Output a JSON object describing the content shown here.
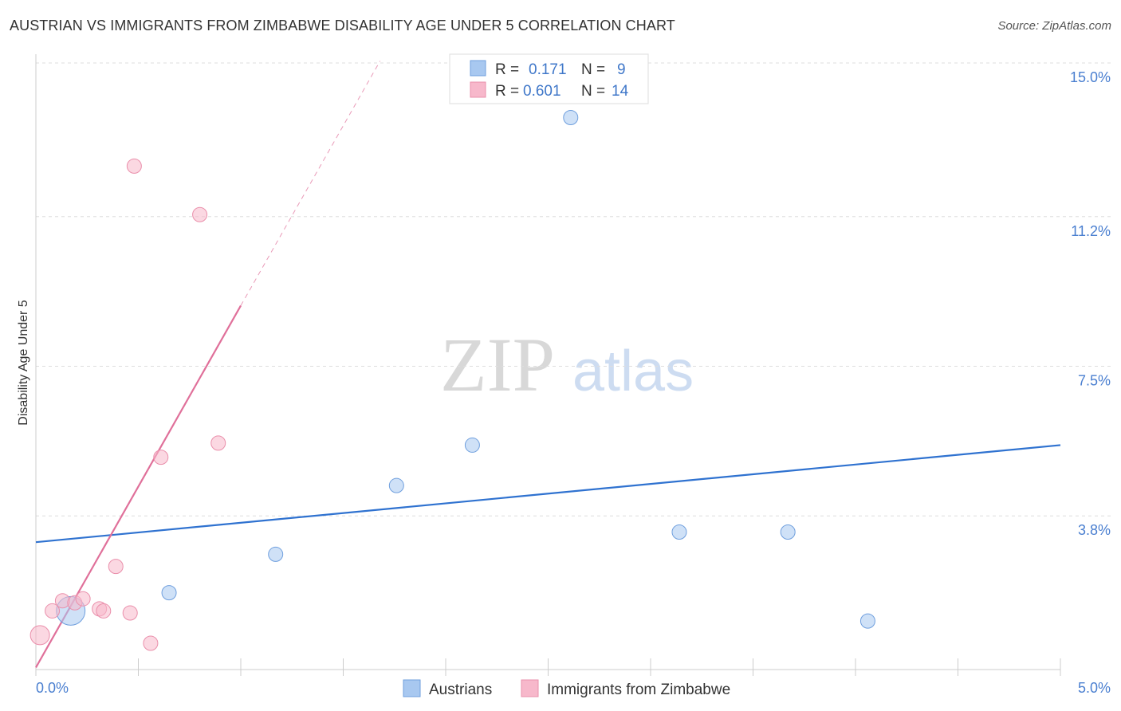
{
  "chart_data": {
    "type": "scatter",
    "title": "AUSTRIAN VS IMMIGRANTS FROM ZIMBABWE DISABILITY AGE UNDER 5 CORRELATION CHART",
    "source": "Source: ZipAtlas.com",
    "ylabel": "Disability Age Under 5",
    "xlim": [
      0,
      5.0
    ],
    "ylim": [
      0,
      15.0
    ],
    "x_tick_labels": [
      "0.0%",
      "5.0%"
    ],
    "y_tick_values": [
      3.8,
      7.5,
      11.2,
      15.0
    ],
    "y_tick_labels": [
      "3.8%",
      "7.5%",
      "11.2%",
      "15.0%"
    ],
    "grid": true,
    "legend_position": "top-center",
    "watermark": {
      "zip": "ZIP",
      "atlas": "atlas"
    },
    "series": [
      {
        "name": "Austrians",
        "color": "#a8c8f0",
        "stroke": "#6f9fde",
        "line_color": "#2f72d0",
        "R": "0.171",
        "N": "9",
        "trend": {
          "x0": 0.0,
          "y0": 3.15,
          "x1": 5.0,
          "y1": 5.55
        },
        "points": [
          {
            "x": 0.17,
            "y": 1.45,
            "size": 18
          },
          {
            "x": 0.65,
            "y": 1.9,
            "size": 9
          },
          {
            "x": 1.17,
            "y": 2.85,
            "size": 9
          },
          {
            "x": 1.76,
            "y": 4.55,
            "size": 9
          },
          {
            "x": 2.13,
            "y": 5.55,
            "size": 9
          },
          {
            "x": 2.61,
            "y": 13.65,
            "size": 9
          },
          {
            "x": 3.14,
            "y": 3.4,
            "size": 9
          },
          {
            "x": 3.67,
            "y": 3.4,
            "size": 9
          },
          {
            "x": 4.06,
            "y": 1.2,
            "size": 9
          }
        ]
      },
      {
        "name": "Immigrants from Zimbabwe",
        "color": "#f7b8cb",
        "stroke": "#ea8fab",
        "line_color": "#e0709a",
        "R": "0.601",
        "N": "14",
        "trend": {
          "x0": 0.0,
          "y0": 0.05,
          "x1": 1.0,
          "y1": 9.0
        },
        "trend_dashed": {
          "x0": 1.0,
          "y0": 9.0,
          "x1": 1.68,
          "y1": 15.05
        },
        "points": [
          {
            "x": 0.02,
            "y": 0.85,
            "size": 12
          },
          {
            "x": 0.08,
            "y": 1.45,
            "size": 9
          },
          {
            "x": 0.13,
            "y": 1.7,
            "size": 9
          },
          {
            "x": 0.19,
            "y": 1.65,
            "size": 9
          },
          {
            "x": 0.23,
            "y": 1.75,
            "size": 9
          },
          {
            "x": 0.31,
            "y": 1.5,
            "size": 9
          },
          {
            "x": 0.33,
            "y": 1.45,
            "size": 9
          },
          {
            "x": 0.39,
            "y": 2.55,
            "size": 9
          },
          {
            "x": 0.46,
            "y": 1.4,
            "size": 9
          },
          {
            "x": 0.48,
            "y": 12.45,
            "size": 9
          },
          {
            "x": 0.56,
            "y": 0.65,
            "size": 9
          },
          {
            "x": 0.61,
            "y": 5.25,
            "size": 9
          },
          {
            "x": 0.8,
            "y": 11.25,
            "size": 9
          },
          {
            "x": 0.89,
            "y": 5.6,
            "size": 9
          }
        ]
      }
    ]
  },
  "legend_labels": {
    "r": "R =",
    "n": "N ="
  }
}
